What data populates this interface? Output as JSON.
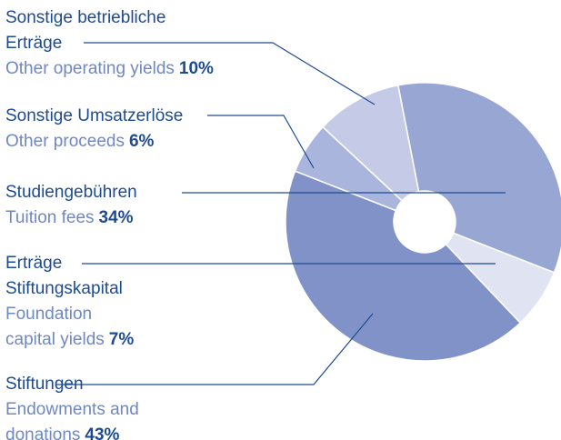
{
  "chart_data": {
    "type": "donut",
    "segments": [
      {
        "label_de": [
          "Sonstige betriebliche",
          "Erträge"
        ],
        "label_en": [
          "Other operating yields"
        ],
        "value": 10,
        "value_label": "10%",
        "color": "#c5cbe6"
      },
      {
        "label_de": [
          "Sonstige Umsatzerlöse"
        ],
        "label_en": [
          "Other proceeds"
        ],
        "value": 6,
        "value_label": "6%",
        "color": "#a9b5dc"
      },
      {
        "label_de": [
          "Studiengebühren"
        ],
        "label_en": [
          "Tuition fees"
        ],
        "value": 34,
        "value_label": "34%",
        "color": "#97a6d3"
      },
      {
        "label_de": [
          "Erträge",
          "Stiftungskapital"
        ],
        "label_en": [
          "Foundation",
          "capital yields"
        ],
        "value": 7,
        "value_label": "7%",
        "color": "#e0e4f2"
      },
      {
        "label_de": [
          "Stiftungen"
        ],
        "label_en": [
          "Endowments and",
          "donations"
        ],
        "value": 43,
        "value_label": "43%",
        "color": "#8092c8"
      }
    ]
  }
}
